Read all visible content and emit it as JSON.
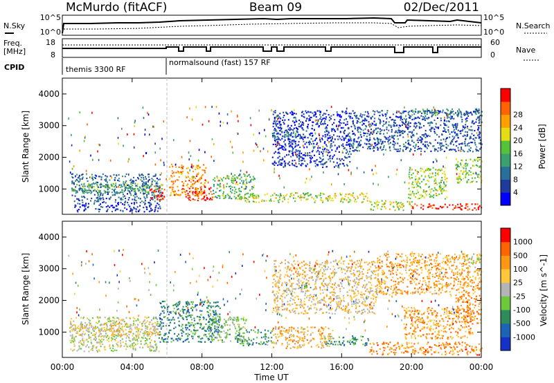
{
  "header": {
    "station": "McMurdo (fitACF)",
    "beam": "Beam 09",
    "date": "02/Dec/2011"
  },
  "sky_panel": {
    "left_label": "N.Sky",
    "right_label": "N.Search",
    "left_ticks": [
      "10^5",
      "10^0"
    ],
    "right_ticks": [
      "10^5",
      "10^0"
    ]
  },
  "freq_panel": {
    "left_label_1": "Freq.",
    "left_label_2": "[MHz]",
    "right_label": "Nave",
    "left_ticks": [
      "18",
      "8"
    ],
    "right_ticks": [
      "60",
      "0"
    ]
  },
  "cpid": {
    "label": "CPID",
    "segments": [
      "themis 3300 RF",
      "normalsound (fast) 157 RF"
    ]
  },
  "colors": {
    "power_scale": [
      "#0000ff",
      "#1e3c9b",
      "#2a6e9a",
      "#3aa06e",
      "#55c23a",
      "#e6dc14",
      "#ffa000",
      "#ff6400",
      "#ff0000"
    ],
    "velocity_scale": [
      "#1432c8",
      "#1e64b4",
      "#2d8c5a",
      "#6ec83c",
      "#b4b4b4",
      "#ffc83c",
      "#ff9614",
      "#ff6400",
      "#ff0000"
    ]
  },
  "chart_data": [
    {
      "type": "heatmap",
      "panel": "power",
      "xlabel": "Time UT",
      "ylabel": "Slant Range [km]",
      "x_ticks": [
        "00:00",
        "04:00",
        "08:00",
        "12:00",
        "16:00",
        "20:00",
        "00:00"
      ],
      "xlim": [
        0,
        24
      ],
      "ylim": [
        200,
        4500
      ],
      "y_ticks": [
        1000,
        2000,
        3000,
        4000
      ],
      "colorbar_label": "Power [dB]",
      "colorbar_ticks": [
        4,
        8,
        12,
        16,
        20,
        24,
        28
      ],
      "blobs": [
        {
          "x": [
            0.5,
            5.7
          ],
          "y": [
            600,
            1500
          ],
          "level": 0.25
        },
        {
          "x": [
            0.5,
            5.7
          ],
          "y": [
            900,
            1200
          ],
          "level": 0.45
        },
        {
          "x": [
            0.6,
            5.6
          ],
          "y": [
            300,
            600
          ],
          "level": 0.15
        },
        {
          "x": [
            5.0,
            5.9
          ],
          "y": [
            650,
            1050
          ],
          "level": 0.95
        },
        {
          "x": [
            6.1,
            8.2
          ],
          "y": [
            800,
            1800
          ],
          "level": 0.75
        },
        {
          "x": [
            7.0,
            8.6
          ],
          "y": [
            650,
            1100
          ],
          "level": 0.95
        },
        {
          "x": [
            8.6,
            11.0
          ],
          "y": [
            700,
            1500
          ],
          "level": 0.45
        },
        {
          "x": [
            10.0,
            15.5
          ],
          "y": [
            600,
            900
          ],
          "level": 0.55
        },
        {
          "x": [
            15.5,
            17.5
          ],
          "y": [
            600,
            900
          ],
          "level": 0.6
        },
        {
          "x": [
            17.5,
            20.0
          ],
          "y": [
            350,
            650
          ],
          "level": 0.6
        },
        {
          "x": [
            20.0,
            24.0
          ],
          "y": [
            350,
            550
          ],
          "level": 0.95
        },
        {
          "x": [
            19.8,
            22.0
          ],
          "y": [
            700,
            1700
          ],
          "level": 0.55
        },
        {
          "x": [
            22.5,
            24.0
          ],
          "y": [
            1200,
            2000
          ],
          "level": 0.5
        },
        {
          "x": [
            12.0,
            16.5
          ],
          "y": [
            1700,
            3500
          ],
          "level": 0.15
        },
        {
          "x": [
            16.5,
            24.0
          ],
          "y": [
            2200,
            3500
          ],
          "level": 0.2
        },
        {
          "x": [
            12.0,
            13.5
          ],
          "y": [
            2650,
            2850
          ],
          "level": 0.35
        },
        {
          "x": [
            20.0,
            21.5
          ],
          "y": [
            3350,
            3550
          ],
          "level": 0.4
        },
        {
          "x": [
            21.8,
            24.0
          ],
          "y": [
            3300,
            3550
          ],
          "level": 0.3
        }
      ]
    },
    {
      "type": "heatmap",
      "panel": "velocity",
      "xlabel": "Time UT",
      "ylabel": "Slant Range [km]",
      "x_ticks": [
        "00:00",
        "04:00",
        "08:00",
        "12:00",
        "16:00",
        "20:00",
        "00:00"
      ],
      "xlim": [
        0,
        24
      ],
      "ylim": [
        200,
        4500
      ],
      "y_ticks": [
        1000,
        2000,
        3000,
        4000
      ],
      "colorbar_label": "Velocity [m s^-1]",
      "colorbar_ticks": [
        1000,
        500,
        100,
        25,
        -25,
        -100,
        -500,
        -1000
      ],
      "blobs": [
        {
          "x": [
            0.4,
            5.5
          ],
          "y": [
            400,
            1500
          ],
          "level": 0.5
        },
        {
          "x": [
            0.4,
            5.5
          ],
          "y": [
            900,
            1300
          ],
          "level": 0.6
        },
        {
          "x": [
            5.5,
            9.0
          ],
          "y": [
            700,
            2000
          ],
          "level": 0.25
        },
        {
          "x": [
            8.4,
            9.0
          ],
          "y": [
            700,
            1600
          ],
          "level": 0.35
        },
        {
          "x": [
            9.0,
            10.5
          ],
          "y": [
            700,
            1500
          ],
          "level": 0.45
        },
        {
          "x": [
            10.0,
            12.0
          ],
          "y": [
            600,
            1100
          ],
          "level": 0.3
        },
        {
          "x": [
            12.0,
            15.5
          ],
          "y": [
            500,
            1200
          ],
          "level": 0.65
        },
        {
          "x": [
            15.0,
            17.5
          ],
          "y": [
            600,
            900
          ],
          "level": 0.3
        },
        {
          "x": [
            17.5,
            24.0
          ],
          "y": [
            300,
            700
          ],
          "level": 0.75
        },
        {
          "x": [
            19.5,
            23.5
          ],
          "y": [
            800,
            1800
          ],
          "level": 0.7
        },
        {
          "x": [
            22.5,
            24.0
          ],
          "y": [
            1300,
            2200
          ],
          "level": 0.75
        },
        {
          "x": [
            12.0,
            18.0
          ],
          "y": [
            1600,
            3300
          ],
          "level": 0.6
        },
        {
          "x": [
            18.0,
            24.0
          ],
          "y": [
            2200,
            3500
          ],
          "level": 0.7
        },
        {
          "x": [
            13.5,
            14.2
          ],
          "y": [
            2400,
            2600
          ],
          "level": 0.35
        },
        {
          "x": [
            23.0,
            24.0
          ],
          "y": [
            3200,
            3500
          ],
          "level": 0.5
        }
      ]
    }
  ]
}
